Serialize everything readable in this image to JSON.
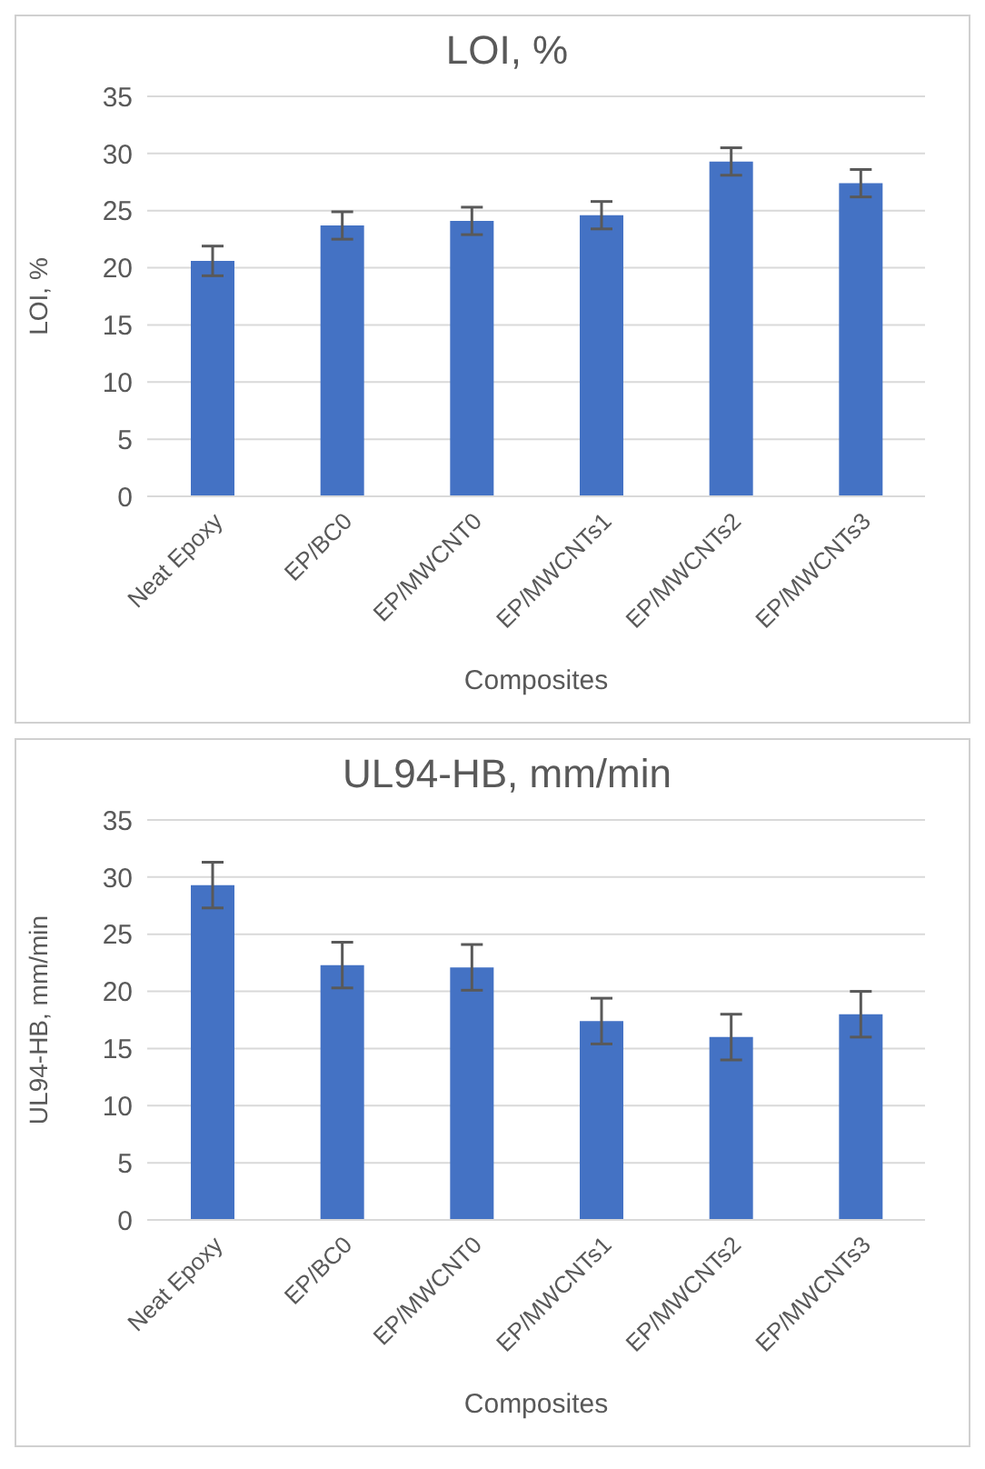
{
  "chart_data": [
    {
      "type": "bar",
      "title": "LOI, %",
      "xlabel": "Composites",
      "ylabel": "LOI, %",
      "categories": [
        "Neat Epoxy",
        "EP/BC0",
        "EP/MWCNT0",
        "EP/MWCNTs1",
        "EP/MWCNTs2",
        "EP/MWCNTs3"
      ],
      "values": [
        20.6,
        23.7,
        24.1,
        24.6,
        29.3,
        27.4
      ],
      "errors": [
        1.3,
        1.2,
        1.2,
        1.2,
        1.2,
        1.2
      ],
      "color": "#4472c4",
      "ylim": [
        0,
        35
      ],
      "yticks": [
        0,
        5,
        10,
        15,
        20,
        25,
        30,
        35
      ],
      "grid": "y"
    },
    {
      "type": "bar",
      "title": "UL94-HB, mm/min",
      "xlabel": "Composites",
      "ylabel": "UL94-HB, mm/min",
      "categories": [
        "Neat Epoxy",
        "EP/BC0",
        "EP/MWCNT0",
        "EP/MWCNTs1",
        "EP/MWCNTs2",
        "EP/MWCNTs3"
      ],
      "values": [
        29.3,
        22.3,
        22.1,
        17.4,
        16.0,
        18.0
      ],
      "errors": [
        2.0,
        2.0,
        2.0,
        2.0,
        2.0,
        2.0
      ],
      "color": "#4472c4",
      "ylim": [
        0,
        35
      ],
      "yticks": [
        0,
        5,
        10,
        15,
        20,
        25,
        30,
        35
      ],
      "grid": "y"
    }
  ]
}
